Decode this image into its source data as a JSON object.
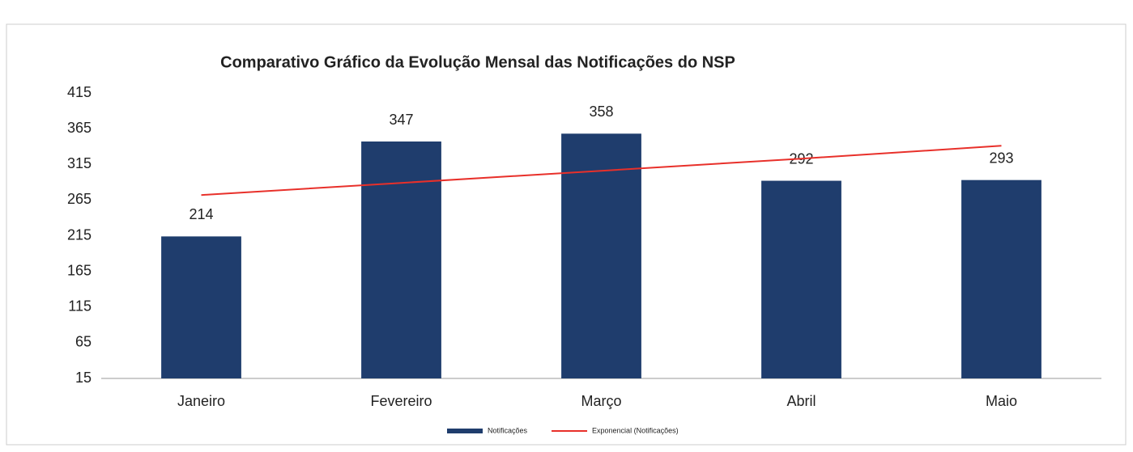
{
  "chart_data": {
    "type": "bar",
    "title": "Comparativo Gráfico da Evolução Mensal das Notificações do NSP",
    "categories": [
      "Janeiro",
      "Fevereiro",
      "Março",
      "Abril",
      "Maio"
    ],
    "series": [
      {
        "name": "Notificações",
        "color": "#1f3d6d",
        "values": [
          214,
          347,
          358,
          292,
          293
        ]
      },
      {
        "name": "Exponencial (Notificações)",
        "color": "#e8302a",
        "type": "line",
        "values": [
          272,
          289,
          306,
          323,
          341
        ]
      }
    ],
    "ylim": [
      15,
      415
    ],
    "yticks": [
      15,
      65,
      115,
      165,
      215,
      265,
      315,
      365,
      415
    ],
    "grid": false
  }
}
